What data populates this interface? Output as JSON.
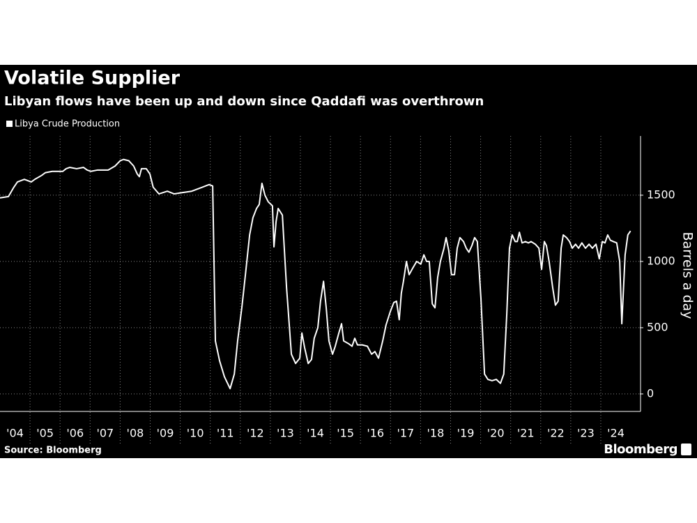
{
  "chart_data": {
    "type": "line",
    "title": "Volatile Supplier",
    "subtitle": "Libyan flows have been up and down since Qaddafi was overthrown",
    "ylabel": "Barrels a day",
    "source": "Source: Bloomberg",
    "brand": "Bloomberg",
    "legend": "top-left",
    "grid": true,
    "xlim": [
      2004,
      2025.3
    ],
    "ylim": [
      -132,
      1947
    ],
    "yticks": [
      0,
      500,
      1000,
      1500
    ],
    "xticks": [
      {
        "value": 2004,
        "label": "'04"
      },
      {
        "value": 2005,
        "label": "'05"
      },
      {
        "value": 2006,
        "label": "'06"
      },
      {
        "value": 2007,
        "label": "'07"
      },
      {
        "value": 2008,
        "label": "'08"
      },
      {
        "value": 2009,
        "label": "'09"
      },
      {
        "value": 2010,
        "label": "'10"
      },
      {
        "value": 2011,
        "label": "'11"
      },
      {
        "value": 2012,
        "label": "'12"
      },
      {
        "value": 2013,
        "label": "'13"
      },
      {
        "value": 2014,
        "label": "'14"
      },
      {
        "value": 2015,
        "label": "'15"
      },
      {
        "value": 2016,
        "label": "'16"
      },
      {
        "value": 2017,
        "label": "'17"
      },
      {
        "value": 2018,
        "label": "'18"
      },
      {
        "value": 2019,
        "label": "'19"
      },
      {
        "value": 2020,
        "label": "'20"
      },
      {
        "value": 2021,
        "label": "'21"
      },
      {
        "value": 2022,
        "label": "'22"
      },
      {
        "value": 2023,
        "label": "'23"
      },
      {
        "value": 2024,
        "label": "'24"
      }
    ],
    "x": [
      2004.0,
      2004.28,
      2004.46,
      2004.58,
      2004.81,
      2005.04,
      2005.16,
      2005.39,
      2005.51,
      2005.74,
      2006.09,
      2006.2,
      2006.32,
      2006.55,
      2006.78,
      2006.9,
      2007.02,
      2007.25,
      2007.6,
      2007.83,
      2008.0,
      2008.11,
      2008.29,
      2008.45,
      2008.57,
      2008.64,
      2008.71,
      2008.87,
      2008.99,
      2009.1,
      2009.29,
      2009.57,
      2009.8,
      2010.08,
      2010.38,
      2010.73,
      2010.96,
      2011.08,
      2011.17,
      2011.31,
      2011.47,
      2011.66,
      2011.8,
      2011.91,
      2012.05,
      2012.17,
      2012.31,
      2012.42,
      2012.54,
      2012.63,
      2012.72,
      2012.82,
      2012.93,
      2013.07,
      2013.12,
      2013.19,
      2013.26,
      2013.4,
      2013.54,
      2013.7,
      2013.84,
      2013.98,
      2014.05,
      2014.14,
      2014.26,
      2014.37,
      2014.46,
      2014.58,
      2014.67,
      2014.77,
      2014.86,
      2014.95,
      2015.07,
      2015.16,
      2015.28,
      2015.37,
      2015.44,
      2015.6,
      2015.72,
      2015.81,
      2015.9,
      2016.06,
      2016.23,
      2016.37,
      2016.48,
      2016.6,
      2016.74,
      2016.85,
      2016.99,
      2017.11,
      2017.2,
      2017.29,
      2017.36,
      2017.43,
      2017.53,
      2017.62,
      2017.74,
      2017.87,
      2018.01,
      2018.11,
      2018.2,
      2018.29,
      2018.39,
      2018.48,
      2018.57,
      2018.66,
      2018.78,
      2018.85,
      2018.94,
      2019.03,
      2019.13,
      2019.22,
      2019.31,
      2019.43,
      2019.52,
      2019.61,
      2019.71,
      2019.8,
      2019.89,
      2020.01,
      2020.13,
      2020.24,
      2020.38,
      2020.52,
      2020.66,
      2020.77,
      2020.87,
      2020.96,
      2021.05,
      2021.15,
      2021.22,
      2021.29,
      2021.38,
      2021.49,
      2021.59,
      2021.68,
      2021.82,
      2021.94,
      2022.03,
      2022.12,
      2022.19,
      2022.28,
      2022.4,
      2022.49,
      2022.58,
      2022.68,
      2022.75,
      2022.86,
      2022.96,
      2023.05,
      2023.16,
      2023.26,
      2023.37,
      2023.49,
      2023.61,
      2023.72,
      2023.84,
      2023.95,
      2024.05,
      2024.14,
      2024.23,
      2024.32,
      2024.42,
      2024.53,
      2024.63,
      2024.7,
      2024.81,
      2024.9,
      2024.99
    ],
    "series": [
      {
        "name": "Libya Crude Production",
        "color": "#ffffff",
        "values": [
          1480,
          1490,
          1560,
          1600,
          1620,
          1600,
          1620,
          1650,
          1670,
          1680,
          1680,
          1700,
          1710,
          1700,
          1710,
          1690,
          1680,
          1690,
          1690,
          1720,
          1760,
          1770,
          1760,
          1720,
          1660,
          1640,
          1700,
          1700,
          1660,
          1560,
          1510,
          1530,
          1510,
          1520,
          1530,
          1560,
          1580,
          1570,
          400,
          250,
          130,
          40,
          150,
          400,
          650,
          900,
          1200,
          1330,
          1400,
          1430,
          1590,
          1500,
          1450,
          1420,
          1110,
          1300,
          1400,
          1350,
          800,
          300,
          230,
          270,
          460,
          350,
          230,
          260,
          420,
          500,
          700,
          850,
          650,
          400,
          300,
          360,
          460,
          530,
          400,
          380,
          360,
          420,
          370,
          370,
          360,
          300,
          320,
          270,
          400,
          520,
          620,
          690,
          700,
          560,
          760,
          850,
          1000,
          900,
          950,
          1000,
          980,
          1050,
          1000,
          1000,
          680,
          650,
          880,
          1000,
          1100,
          1180,
          1080,
          900,
          900,
          1100,
          1180,
          1150,
          1100,
          1070,
          1120,
          1180,
          1150,
          720,
          150,
          110,
          100,
          110,
          80,
          150,
          600,
          1100,
          1200,
          1150,
          1150,
          1220,
          1140,
          1150,
          1140,
          1150,
          1130,
          1100,
          940,
          1150,
          1120,
          1000,
          800,
          670,
          700,
          1100,
          1200,
          1180,
          1150,
          1100,
          1130,
          1100,
          1140,
          1100,
          1130,
          1100,
          1130,
          1020,
          1150,
          1140,
          1200,
          1160,
          1150,
          1140,
          1000,
          530,
          1050,
          1200,
          1230
        ]
      }
    ]
  }
}
